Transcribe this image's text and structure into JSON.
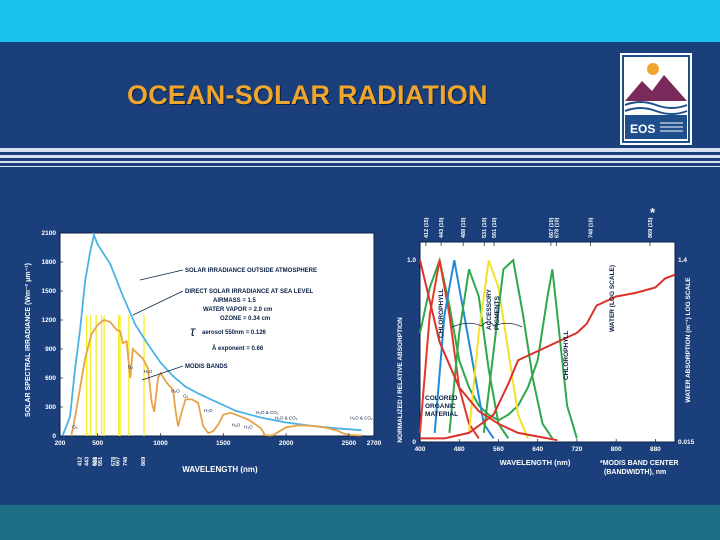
{
  "slide": {
    "title": "OCEAN-SOLAR RADIATION",
    "logo_text": "EOS",
    "footnote_star": "*"
  },
  "colors": {
    "background": "#1a3f7a",
    "top_bar": "#19c3ee",
    "bottom_bar": "#1c6d86",
    "title": "#f0a52c",
    "outside_atmosphere": "#4ab3e6",
    "sea_level": "#e6a34a",
    "modis_bands": "#f2ee2a",
    "chlorophyll": "#2ea84a",
    "accessory_red": "#e23a2a",
    "accessory_blue": "#1f8ad8",
    "accessory_yellow": "#f2e22a",
    "water": "#d8322a",
    "colored_organic": "#d8322a"
  },
  "chart_data": [
    {
      "type": "line",
      "xlabel": "WAVELENGTH (nm)",
      "ylabel": "SOLAR SPECTRAL IRRADIANCE (Wm⁻² μm⁻¹)",
      "xlim": [
        200,
        2700
      ],
      "ylim": [
        0,
        2100
      ],
      "x_ticks": [
        "200",
        "500",
        "1000",
        "1500",
        "2000",
        "2500",
        "2700"
      ],
      "y_ticks": [
        "0",
        "300",
        "600",
        "900",
        "1200",
        "1500",
        "1800",
        "2100"
      ],
      "modis_band_labels": [
        "412",
        "443",
        "488",
        "531",
        "551",
        "667",
        "678",
        "748",
        "869"
      ],
      "legend": {
        "outside": "SOLAR IRRADIANCE OUTSIDE ATMOSPHERE",
        "sea_level": "DIRECT SOLAR IRRADIANCE AT SEA LEVEL",
        "airmass": "AIRMASS = 1.5",
        "water_vapor": "WATER VAPOR = 2.0 cm",
        "ozone": "OZONE = 0.34 cm",
        "aerosol": "aerosol 550nm = 0.126",
        "exponent": "Å exponent = 0.66",
        "modis": "MODIS BANDS"
      },
      "annotations": [
        "O₃",
        "O₂",
        "H₂O",
        "H₂O",
        "O₂",
        "H₂O",
        "H₂O & CO₂",
        "H₂O & CO₂",
        "H₂O & CO₂",
        "H₂O",
        "H₂O"
      ],
      "series": [
        {
          "name": "SOLAR IRRADIANCE OUTSIDE ATMOSPHERE",
          "x": [
            220,
            280,
            320,
            360,
            400,
            440,
            470,
            500,
            550,
            600,
            700,
            800,
            900,
            1000,
            1100,
            1200,
            1300,
            1400,
            1500,
            1600,
            1800,
            2000,
            2200,
            2400,
            2600
          ],
          "y": [
            0,
            200,
            700,
            1100,
            1600,
            1900,
            2080,
            1980,
            1880,
            1780,
            1450,
            1150,
            950,
            760,
            620,
            510,
            440,
            380,
            320,
            260,
            190,
            140,
            105,
            80,
            60
          ]
        },
        {
          "name": "DIRECT SOLAR IRRADIANCE AT SEA LEVEL",
          "x": [
            290,
            320,
            360,
            400,
            450,
            500,
            550,
            600,
            650,
            680,
            700,
            730,
            760,
            780,
            820,
            860,
            900,
            930,
            950,
            980,
            1000,
            1050,
            1100,
            1120,
            1140,
            1170,
            1200,
            1250,
            1300,
            1340,
            1380,
            1420,
            1460,
            1500,
            1560,
            1600,
            1700,
            1800,
            1830,
            1870,
            1900,
            1960,
            2000,
            2100,
            2200,
            2300,
            2400,
            2450,
            2500,
            2600
          ],
          "y": [
            0,
            200,
            500,
            800,
            1050,
            1150,
            1200,
            1180,
            1100,
            1080,
            960,
            980,
            600,
            900,
            850,
            800,
            700,
            350,
            250,
            600,
            650,
            550,
            480,
            260,
            100,
            250,
            380,
            380,
            340,
            100,
            30,
            50,
            120,
            220,
            240,
            220,
            170,
            80,
            10,
            5,
            10,
            60,
            90,
            110,
            105,
            90,
            60,
            30,
            10,
            5
          ]
        }
      ]
    },
    {
      "type": "line",
      "xlabel": "WAVELENGTH (nm)",
      "ylabel": "NORMALIZED / RELATIVE ABSORPTION",
      "y2label": "WATER ABSORPTION (m⁻¹) LOG SCALE",
      "xlim": [
        400,
        920
      ],
      "ylim": [
        0,
        1.1
      ],
      "x_ticks": [
        "400",
        "480",
        "560",
        "640",
        "720",
        "800",
        "880"
      ],
      "y_ticks": [
        "0",
        "1.0"
      ],
      "y2_ticks": [
        "0.015",
        "1.4"
      ],
      "top_band_labels": [
        "412 (15)",
        "443 (10)",
        "488 (10)",
        "531 (10)",
        "551 (10)",
        "667 (10)",
        "678 (10)",
        "748 (10)",
        "869 (15)"
      ],
      "curve_labels": [
        "CHLOROPHYLL",
        "ACCESSORY PIGMENTS",
        "CHLOROPHYLL",
        "WATER (LOG SCALE)",
        "COLORED ORGANIC MATERIAL"
      ],
      "footnote": "*MODIS BAND CENTER (BANDWIDTH), nm",
      "series": [
        {
          "name": "CHLOROPHYLL",
          "x": [
            400,
            420,
            440,
            460,
            480,
            500,
            520,
            540,
            560,
            580,
            600,
            620,
            640,
            660,
            670,
            680,
            700,
            720
          ],
          "y": [
            0.6,
            0.85,
            1.0,
            0.75,
            0.45,
            0.3,
            0.2,
            0.15,
            0.12,
            0.15,
            0.2,
            0.3,
            0.45,
            0.8,
            0.95,
            0.7,
            0.2,
            0.02
          ]
        },
        {
          "name": "ACCESSORY PIGMENTS (red)",
          "x": [
            400,
            420,
            440,
            460,
            480,
            500,
            520
          ],
          "y": [
            0.05,
            0.7,
            1.0,
            0.7,
            0.3,
            0.1,
            0.02
          ]
        },
        {
          "name": "ACCESSORY PIGMENTS (blue)",
          "x": [
            430,
            450,
            470,
            490,
            510,
            530,
            550
          ],
          "y": [
            0.05,
            0.7,
            1.0,
            0.7,
            0.4,
            0.1,
            0.02
          ]
        },
        {
          "name": "ACCESSORY PIGMENTS (green)",
          "x": [
            460,
            480,
            500,
            520,
            540,
            560,
            580
          ],
          "y": [
            0.05,
            0.6,
            0.95,
            0.8,
            0.4,
            0.1,
            0.02
          ]
        },
        {
          "name": "ACCESSORY PIGMENTS (yellow)",
          "x": [
            500,
            520,
            540,
            560,
            580,
            600,
            620
          ],
          "y": [
            0.05,
            0.6,
            1.0,
            0.85,
            0.5,
            0.15,
            0.02
          ]
        },
        {
          "name": "ACCESSORY PIGMENTS (green 2)",
          "x": [
            530,
            550,
            570,
            590,
            610,
            630,
            650,
            670
          ],
          "y": [
            0.05,
            0.5,
            0.95,
            1.0,
            0.7,
            0.35,
            0.1,
            0.02
          ]
        },
        {
          "name": "COLORED ORGANIC MATERIAL",
          "x": [
            400,
            440,
            480,
            520,
            560,
            600,
            640,
            680
          ],
          "y": [
            1.0,
            0.55,
            0.3,
            0.17,
            0.1,
            0.05,
            0.03,
            0.01
          ]
        },
        {
          "name": "WATER (LOG SCALE)",
          "x": [
            400,
            450,
            500,
            550,
            580,
            600,
            640,
            680,
            720,
            740,
            760,
            800,
            840,
            880,
            900,
            920
          ],
          "y": [
            0.02,
            0.02,
            0.05,
            0.15,
            0.32,
            0.45,
            0.5,
            0.55,
            0.6,
            0.65,
            0.75,
            0.8,
            0.82,
            0.85,
            0.9,
            0.92
          ]
        }
      ]
    }
  ]
}
